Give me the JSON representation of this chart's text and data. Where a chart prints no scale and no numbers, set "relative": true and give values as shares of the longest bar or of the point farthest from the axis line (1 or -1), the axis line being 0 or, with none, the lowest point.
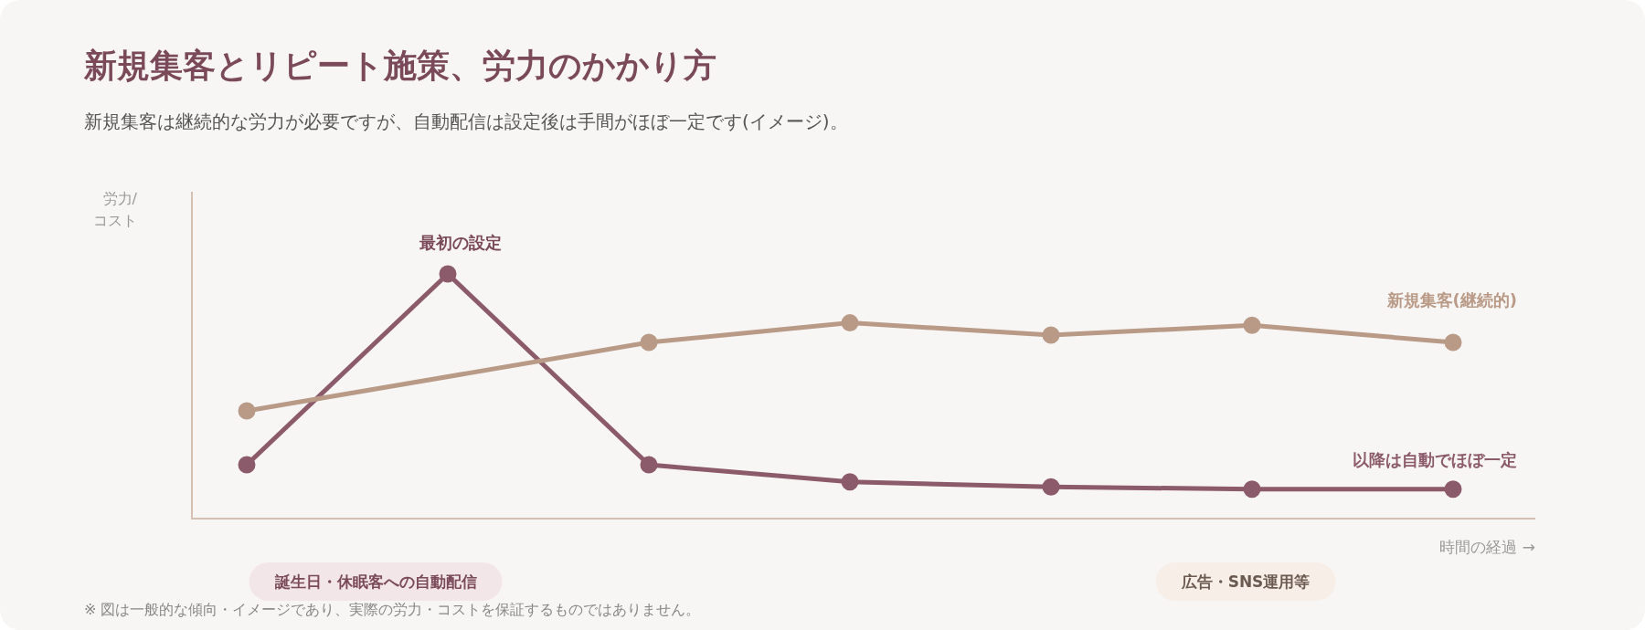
{
  "chart_data": {
    "type": "line",
    "title": "新規集客とリピート施策、労力のかかり方",
    "subtitle": "新規集客は継続的な労力が必要ですが、自動配信は設定後は手間がほぼ一定です(イメージ)。",
    "xlabel": "時間の経過 →",
    "ylabel": "労力/コスト",
    "relative": true,
    "categories": [
      null,
      null,
      null,
      null,
      null,
      null,
      null
    ],
    "series": [
      {
        "name": "新規集客(継続的)",
        "color": "#b89a87",
        "values": [
          0.44,
          null,
          0.72,
          0.8,
          0.75,
          0.79,
          0.72
        ]
      },
      {
        "name": "以降は自動でほぼ一定",
        "color": "#8b5a6b",
        "values": [
          0.22,
          1,
          0.22,
          0.15,
          0.13,
          0.12,
          0.12
        ]
      }
    ],
    "marker": "circle",
    "line_style": "solid",
    "legend": false,
    "annotations": [
      "最初の設定",
      "誕生日・休眠客への自動配信",
      "広告・SNS運用等",
      "※ 図は一般的な傾向・イメージであり、実際の労力・コストを保証するものではありません。"
    ]
  }
}
